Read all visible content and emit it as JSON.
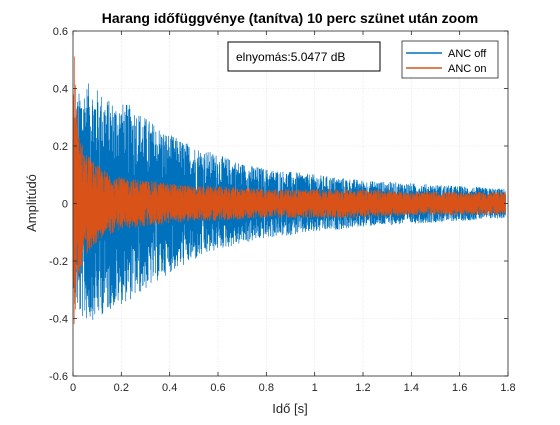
{
  "chart_data": {
    "type": "line",
    "title": "Harang időfüggvénye (tanítva) 10 perc szünet után zoom",
    "xlabel": "Idő [s]",
    "ylabel": "Amplitúdó",
    "xlim": [
      0,
      1.8
    ],
    "ylim": [
      -0.6,
      0.6
    ],
    "xticks": [
      0,
      0.2,
      0.4,
      0.6,
      0.8,
      1,
      1.2,
      1.4,
      1.6,
      1.8
    ],
    "xtick_labels": [
      "0",
      "0.2",
      "0.4",
      "0.6",
      "0.8",
      "1",
      "1.2",
      "1.4",
      "1.6",
      "1.8"
    ],
    "yticks": [
      -0.6,
      -0.4,
      -0.2,
      0,
      0.2,
      0.4,
      0.6
    ],
    "ytick_labels": [
      "-0.6",
      "-0.4",
      "-0.2",
      "0",
      "0.2",
      "0.4",
      "0.6"
    ],
    "grid": true,
    "legend_position": "top-right",
    "x_end": 1.79,
    "annotation": "elnyomás:5.0477 dB",
    "series": [
      {
        "name": "ANC off",
        "color": "#0072BD",
        "envelope": {
          "x": [
            0,
            0.01,
            0.03,
            0.06,
            0.1,
            0.15,
            0.2,
            0.25,
            0.3,
            0.4,
            0.5,
            0.6,
            0.7,
            0.8,
            0.9,
            1.0,
            1.2,
            1.4,
            1.6,
            1.79
          ],
          "upper": [
            0.28,
            0.35,
            0.4,
            0.42,
            0.4,
            0.36,
            0.35,
            0.34,
            0.3,
            0.24,
            0.2,
            0.17,
            0.14,
            0.12,
            0.11,
            0.1,
            0.08,
            0.07,
            0.06,
            0.05
          ],
          "lower": [
            -0.28,
            -0.35,
            -0.4,
            -0.41,
            -0.4,
            -0.37,
            -0.35,
            -0.33,
            -0.3,
            -0.24,
            -0.2,
            -0.16,
            -0.14,
            -0.12,
            -0.11,
            -0.1,
            -0.08,
            -0.07,
            -0.06,
            -0.05
          ]
        }
      },
      {
        "name": "ANC on",
        "color": "#D95319",
        "envelope": {
          "x": [
            0,
            0.005,
            0.01,
            0.02,
            0.04,
            0.08,
            0.12,
            0.2,
            0.3,
            0.4,
            0.5,
            0.6,
            0.8,
            1.0,
            1.2,
            1.4,
            1.6,
            1.79
          ],
          "upper": [
            0.4,
            0.53,
            0.45,
            0.3,
            0.2,
            0.15,
            0.12,
            0.09,
            0.08,
            0.07,
            0.06,
            0.06,
            0.05,
            0.05,
            0.05,
            0.04,
            0.04,
            0.04
          ],
          "lower": [
            -0.4,
            -0.45,
            -0.38,
            -0.28,
            -0.2,
            -0.15,
            -0.12,
            -0.09,
            -0.08,
            -0.07,
            -0.06,
            -0.06,
            -0.05,
            -0.05,
            -0.05,
            -0.04,
            -0.04,
            -0.04
          ]
        }
      }
    ]
  }
}
